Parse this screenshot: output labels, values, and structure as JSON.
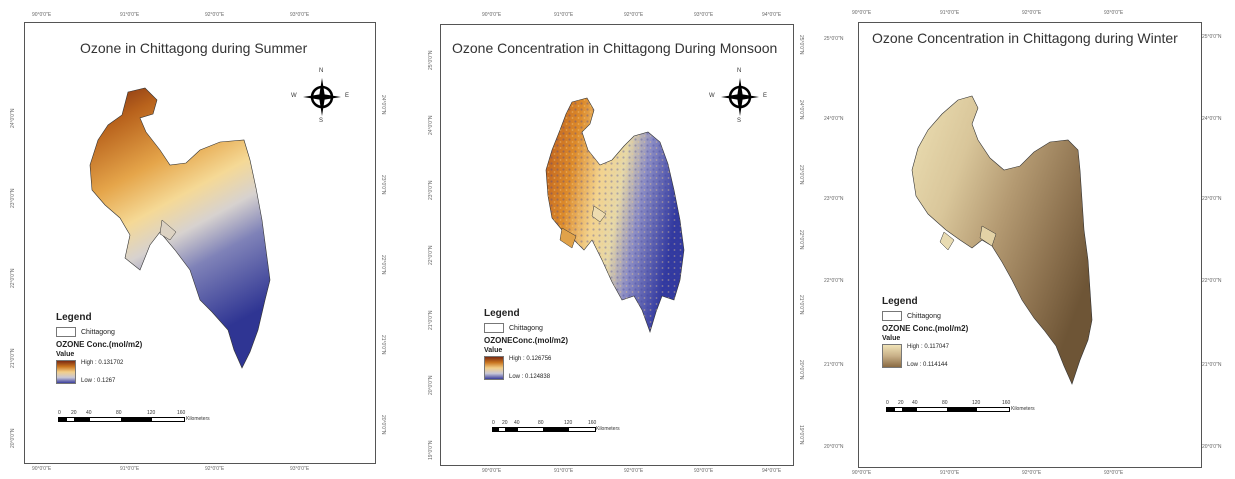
{
  "maps": [
    {
      "title": "Ozone in Chittagong during Summer",
      "top_ticks": [
        "90°0'0\"E",
        "91°0'0\"E",
        "92°0'0\"E",
        "93°0'0\"E"
      ],
      "bottom_ticks": [
        "90°0'0\"E",
        "91°0'0\"E",
        "92°0'0\"E",
        "93°0'0\"E"
      ],
      "left_ticks": [
        "24°0'0\"N",
        "23°0'0\"N",
        "22°0'0\"N",
        "21°0'0\"N",
        "20°0'0\"N"
      ],
      "right_ticks": [
        "24°0'0\"N",
        "23°0'0\"N",
        "22°0'0\"N",
        "21°0'0\"N",
        "20°0'0\"N"
      ],
      "legend": {
        "title": "Legend",
        "boundary_label": "Chittagong",
        "layer_label": "OZONE Conc.(mol/m2)",
        "value_label": "Value",
        "high": "High : 0.131702",
        "low": "Low : 0.1267",
        "ramp_colors": [
          "#7a2a12",
          "#c9741f",
          "#f2cf8a",
          "#c9c8d6",
          "#3b3f9c"
        ]
      },
      "scale": {
        "labels": [
          "0",
          "20",
          "40",
          "80",
          "120",
          "160"
        ],
        "unit": "Kilometers"
      },
      "north": {
        "n": "N",
        "s": "S",
        "e": "E",
        "w": "W"
      }
    },
    {
      "title": "Ozone Concentration in Chittagong During Monsoon",
      "top_ticks": [
        "90°0'0\"E",
        "91°0'0\"E",
        "92°0'0\"E",
        "93°0'0\"E",
        "94°0'0\"E"
      ],
      "bottom_ticks": [
        "90°0'0\"E",
        "91°0'0\"E",
        "92°0'0\"E",
        "93°0'0\"E",
        "94°0'0\"E"
      ],
      "left_ticks": [
        "25°0'0\"N",
        "24°0'0\"N",
        "23°0'0\"N",
        "22°0'0\"N",
        "21°0'0\"N",
        "20°0'0\"N",
        "19°0'0\"N"
      ],
      "right_ticks": [
        "25°0'0\"N",
        "24°0'0\"N",
        "23°0'0\"N",
        "22°0'0\"N",
        "21°0'0\"N",
        "20°0'0\"N",
        "19°0'0\"N"
      ],
      "legend": {
        "title": "Legend",
        "boundary_label": "Chittagong",
        "layer_label": "OZONEConc.(mol/m2)",
        "value_label": "Value",
        "high": "High : 0.126756",
        "low": "Low : 0.124838",
        "ramp_colors": [
          "#7a2a12",
          "#c9741f",
          "#f2cf8a",
          "#c9c8d6",
          "#3b3f9c"
        ]
      },
      "scale": {
        "labels": [
          "0",
          "20",
          "40",
          "80",
          "120",
          "160"
        ],
        "unit": "Kilometers"
      },
      "north": {
        "n": "N",
        "s": "S",
        "e": "E",
        "w": "W"
      }
    },
    {
      "title": "Ozone Concentration in Chittagong during Winter",
      "top_ticks": [
        "90°0'0\"E",
        "91°0'0\"E",
        "92°0'0\"E",
        "93°0'0\"E"
      ],
      "bottom_ticks": [
        "90°0'0\"E",
        "91°0'0\"E",
        "92°0'0\"E",
        "93°0'0\"E"
      ],
      "left_ticks": [
        "25°0'0\"N",
        "24°0'0\"N",
        "23°0'0\"N",
        "22°0'0\"N",
        "21°0'0\"N",
        "20°0'0\"N"
      ],
      "right_ticks": [
        "25°0'0\"N",
        "24°0'0\"N",
        "23°0'0\"N",
        "22°0'0\"N",
        "21°0'0\"N",
        "20°0'0\"N"
      ],
      "legend": {
        "title": "Legend",
        "boundary_label": "Chittagong",
        "layer_label": "OZONE Conc.(mol/m2)",
        "value_label": "Value",
        "high": "High : 0.117047",
        "low": "Low : 0.114144",
        "ramp_colors": [
          "#f0e3b6",
          "#c8b088",
          "#8a6a42"
        ]
      },
      "scale": {
        "labels": [
          "0",
          "20",
          "40",
          "80",
          "120",
          "160"
        ],
        "unit": "Kilometers"
      }
    }
  ]
}
